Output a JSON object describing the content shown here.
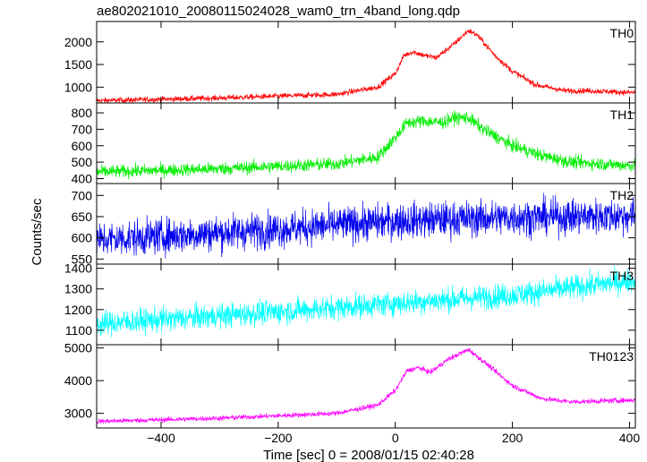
{
  "chart_data": {
    "type": "line",
    "title": "ae802021010_20080115024028_wam0_trn_4band_long.qdp",
    "xlabel": "Time [sec] 0 = 2008/01/15 02:40:28",
    "ylabel": "Counts/sec",
    "xlim": [
      -510,
      410
    ],
    "xticks": [
      -400,
      -200,
      0,
      200,
      400
    ],
    "xtick_labels": [
      "−400",
      "−200",
      "0",
      "200",
      "400"
    ],
    "grid": false,
    "panels": [
      {
        "name": "TH0",
        "color": "#ff0000",
        "ylim": [
          650,
          2450
        ],
        "yticks": [
          1000,
          1500,
          2000
        ],
        "ytick_labels": [
          "1000",
          "1500",
          "2000"
        ],
        "noise": 45,
        "profile": [
          [
            -510,
            700
          ],
          [
            -300,
            760
          ],
          [
            -100,
            840
          ],
          [
            -30,
            1000
          ],
          [
            0,
            1300
          ],
          [
            15,
            1700
          ],
          [
            30,
            1780
          ],
          [
            50,
            1700
          ],
          [
            70,
            1650
          ],
          [
            100,
            1950
          ],
          [
            125,
            2250
          ],
          [
            140,
            2150
          ],
          [
            170,
            1700
          ],
          [
            200,
            1350
          ],
          [
            240,
            1050
          ],
          [
            290,
            920
          ],
          [
            330,
            920
          ],
          [
            400,
            880
          ]
        ]
      },
      {
        "name": "TH1",
        "color": "#00ee00",
        "ylim": [
          370,
          860
        ],
        "yticks": [
          400,
          500,
          600,
          700,
          800
        ],
        "ytick_labels": [
          "400",
          "500",
          "600",
          "700",
          "800"
        ],
        "noise": 28,
        "profile": [
          [
            -510,
            440
          ],
          [
            -300,
            460
          ],
          [
            -100,
            490
          ],
          [
            -30,
            530
          ],
          [
            0,
            650
          ],
          [
            20,
            740
          ],
          [
            50,
            750
          ],
          [
            80,
            740
          ],
          [
            100,
            770
          ],
          [
            125,
            770
          ],
          [
            150,
            700
          ],
          [
            200,
            600
          ],
          [
            250,
            540
          ],
          [
            300,
            500
          ],
          [
            400,
            480
          ]
        ]
      },
      {
        "name": "TH2",
        "color": "#0000ee",
        "ylim": [
          538,
          728
        ],
        "yticks": [
          550,
          600,
          650,
          700
        ],
        "ytick_labels": [
          "550",
          "600",
          "650",
          "700"
        ],
        "noise": 30,
        "profile": [
          [
            -510,
            595
          ],
          [
            -200,
            620
          ],
          [
            0,
            640
          ],
          [
            200,
            648
          ],
          [
            400,
            652
          ]
        ]
      },
      {
        "name": "TH3",
        "color": "#00ffff",
        "ylim": [
          1030,
          1420
        ],
        "yticks": [
          1100,
          1200,
          1300,
          1400
        ],
        "ytick_labels": [
          "1100",
          "1200",
          "1300",
          "1400"
        ],
        "noise": 42,
        "profile": [
          [
            -510,
            1130
          ],
          [
            -200,
            1190
          ],
          [
            0,
            1230
          ],
          [
            200,
            1270
          ],
          [
            400,
            1340
          ]
        ]
      },
      {
        "name": "TH0123",
        "color": "#ff00ff",
        "ylim": [
          2550,
          5100
        ],
        "yticks": [
          3000,
          4000,
          5000
        ],
        "ytick_labels": [
          "3000",
          "4000",
          "5000"
        ],
        "noise": 55,
        "profile": [
          [
            -510,
            2750
          ],
          [
            -300,
            2850
          ],
          [
            -100,
            3000
          ],
          [
            -30,
            3250
          ],
          [
            0,
            3700
          ],
          [
            20,
            4300
          ],
          [
            40,
            4400
          ],
          [
            60,
            4250
          ],
          [
            90,
            4650
          ],
          [
            125,
            4950
          ],
          [
            150,
            4600
          ],
          [
            200,
            3850
          ],
          [
            250,
            3450
          ],
          [
            300,
            3350
          ],
          [
            400,
            3400
          ]
        ]
      }
    ]
  }
}
